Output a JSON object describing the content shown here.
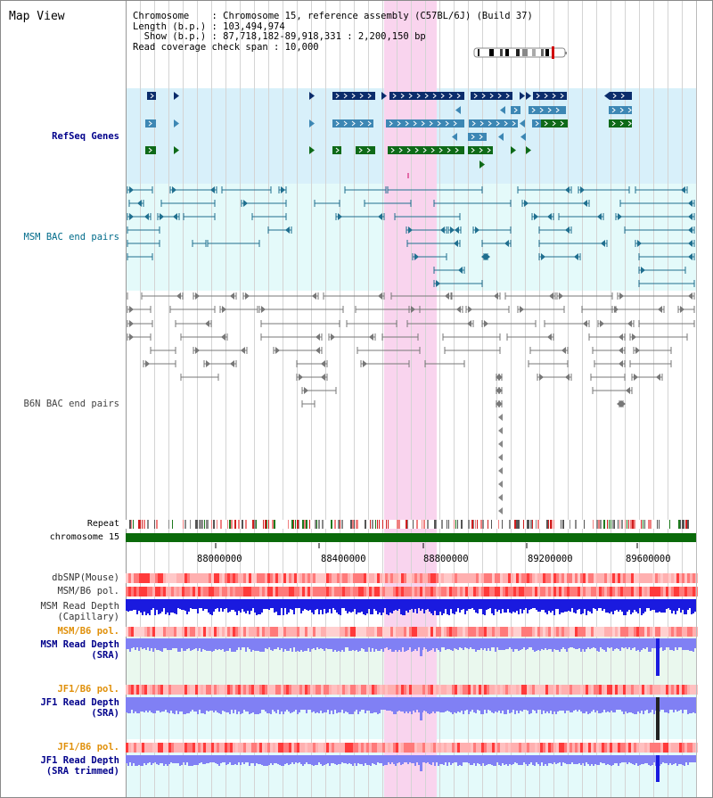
{
  "view": {
    "title": "Map View",
    "info_lines": [
      "Chromosome    : Chromosome 15, reference assembly (C57BL/6J) (Build 37)",
      "Length (b.p.) : 103,494,974",
      "  Show (b.p.) : 87,718,182-89,918,331 : 2,200,150 bp",
      "Read coverage check span : 10,000"
    ]
  },
  "tracks": {
    "refseq": "RefSeq Genes",
    "msm_bac": "MSM BAC end pairs",
    "b6n_bac": "B6N BAC end pairs",
    "repeat": "Repeat",
    "chromosome": "chromosome 15",
    "dbsnp": "dbSNP(Mouse)",
    "msm_b6_pol": "MSM/B6 pol.",
    "msm_depth_cap": [
      "MSM Read Depth",
      "(Capillary)"
    ],
    "msm_b6_pol2": "MSM/B6 pol.",
    "msm_depth_sra": [
      "MSM Read Depth",
      "(SRA)"
    ],
    "jf1_b6_pol": "JF1/B6 pol.",
    "jf1_depth_sra": [
      "JF1 Read Depth",
      "(SRA)"
    ],
    "jf1_b6_pol2": "JF1/B6 pol.",
    "jf1_depth_trim": [
      "JF1 Read Depth",
      "(SRA trimmed)"
    ]
  },
  "axis": {
    "ticks": [
      "88000000",
      "88400000",
      "88800000",
      "89200000",
      "89600000"
    ]
  },
  "colors": {
    "highlight": "#f9d4ee",
    "refseq_bg": "#d8f0fa",
    "bac_bg": "#e4fafa",
    "depth_bg": "#eaf8ee",
    "gene_navy": "#0b2c6b",
    "gene_steel": "#3d87b4",
    "gene_green": "#0e6a18",
    "chromosome": "#0a6a0a",
    "msm_bac_line": "#1f6f8f",
    "b6n_bac_line": "#777777",
    "depth_blue": "#1a1adf",
    "depth_light": "#8080f4"
  }
}
